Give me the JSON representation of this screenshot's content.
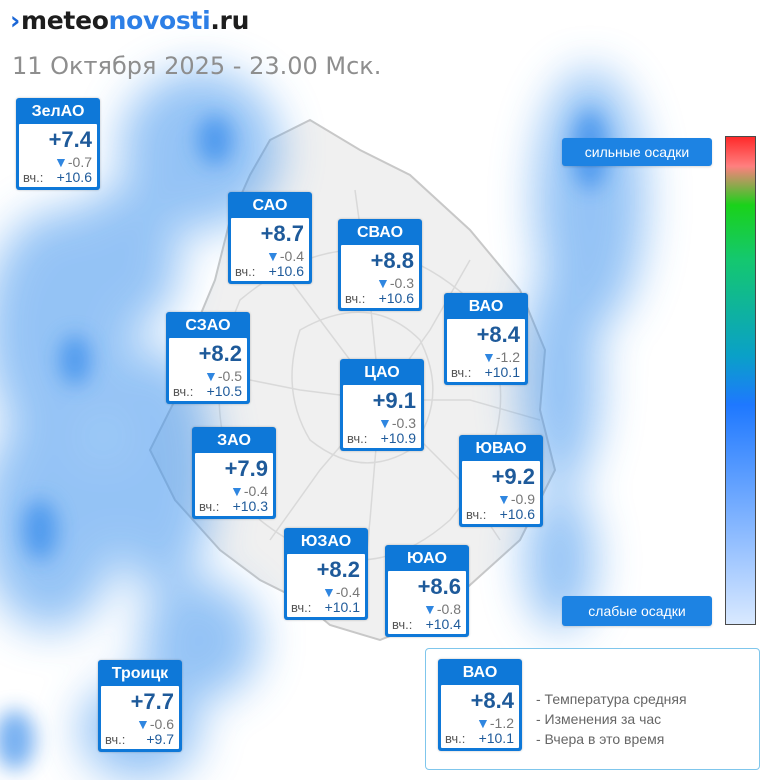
{
  "header": {
    "logo": {
      "mark": "›",
      "part1": "meteo",
      "part2": "novosti",
      "part3": ".ru"
    },
    "datetime": "11 Октября 2025 - 23.00 Мск."
  },
  "districts": [
    {
      "id": "zelao",
      "name": "ЗелАО",
      "temp": "+7.4",
      "change": "-0.7",
      "yesterday_prefix": "вч.:",
      "yesterday": "+10.6"
    },
    {
      "id": "sao",
      "name": "САО",
      "temp": "+8.7",
      "change": "-0.4",
      "yesterday_prefix": "вч.:",
      "yesterday": "+10.6"
    },
    {
      "id": "svao",
      "name": "СВАО",
      "temp": "+8.8",
      "change": "-0.3",
      "yesterday_prefix": "вч.:",
      "yesterday": "+10.6"
    },
    {
      "id": "vao",
      "name": "ВАО",
      "temp": "+8.4",
      "change": "-1.2",
      "yesterday_prefix": "вч.:",
      "yesterday": "+10.1"
    },
    {
      "id": "szao",
      "name": "СЗАО",
      "temp": "+8.2",
      "change": "-0.5",
      "yesterday_prefix": "вч.:",
      "yesterday": "+10.5"
    },
    {
      "id": "cao",
      "name": "ЦАО",
      "temp": "+9.1",
      "change": "-0.3",
      "yesterday_prefix": "вч.:",
      "yesterday": "+10.9"
    },
    {
      "id": "zao",
      "name": "ЗАО",
      "temp": "+7.9",
      "change": "-0.4",
      "yesterday_prefix": "вч.:",
      "yesterday": "+10.3"
    },
    {
      "id": "yuvao",
      "name": "ЮВАО",
      "temp": "+9.2",
      "change": "-0.9",
      "yesterday_prefix": "вч.:",
      "yesterday": "+10.6"
    },
    {
      "id": "yuzao",
      "name": "ЮЗАО",
      "temp": "+8.2",
      "change": "-0.4",
      "yesterday_prefix": "вч.:",
      "yesterday": "+10.1"
    },
    {
      "id": "yuao",
      "name": "ЮАО",
      "temp": "+8.6",
      "change": "-0.8",
      "yesterday_prefix": "вч.:",
      "yesterday": "+10.4"
    },
    {
      "id": "troick",
      "name": "Троицк",
      "temp": "+7.7",
      "change": "-0.6",
      "yesterday_prefix": "вч.:",
      "yesterday": "+9.7"
    }
  ],
  "precip_scale": {
    "strong_label": "сильные осадки",
    "weak_label": "слабые осадки",
    "colors": [
      "#ff2a2a",
      "#ff7f7f",
      "#1ad21a",
      "#14c86e",
      "#0aa0c8",
      "#1e78ff",
      "#d9e9ff"
    ]
  },
  "legend": {
    "sample": {
      "name": "ВАО",
      "temp": "+8.4",
      "change": "-1.2",
      "yesterday_prefix": "вч.:",
      "yesterday": "+10.1"
    },
    "items": [
      "- Температура средняя",
      "- Изменения за час",
      "- Вчера в это время"
    ]
  },
  "colors": {
    "card_blue": "#0e78d8",
    "temp_text": "#1e5a9a",
    "precip_blue": "#4a9bf0"
  }
}
